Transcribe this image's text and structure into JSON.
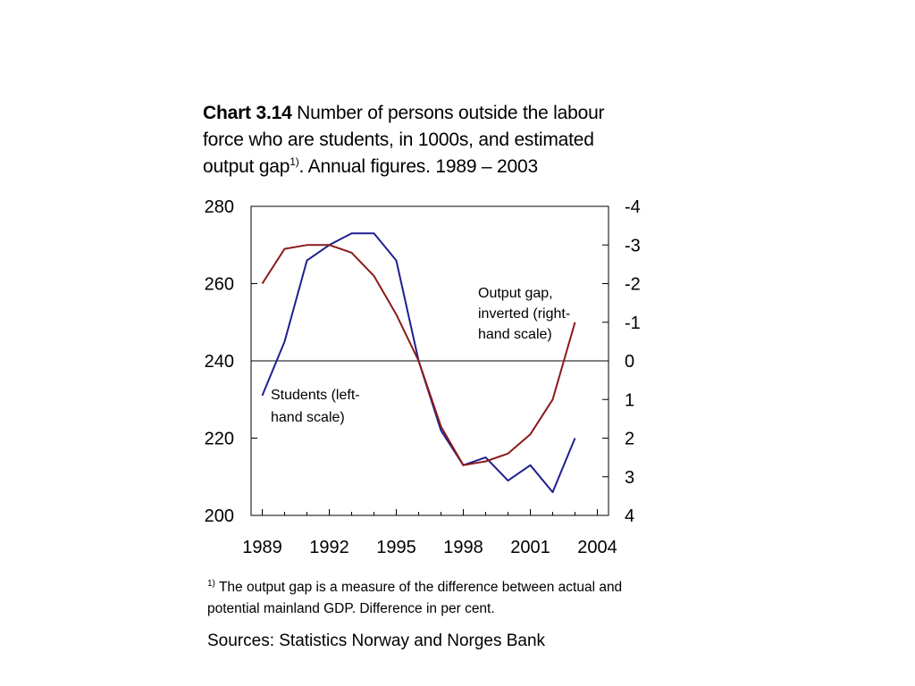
{
  "title": {
    "bold": "Chart 3.14",
    "line1": " Number of persons outside the labour",
    "line2": "force who are students, in 1000s, and estimated",
    "line3_pre": "output gap",
    "line3_sup": "1)",
    "line3_post": ". Annual figures. 1989 – 2003"
  },
  "footnote": {
    "marker": "1)",
    "text": "The output gap is a measure of the difference between actual and potential mainland GDP. Difference in per cent."
  },
  "sources": "Sources: Statistics Norway and Norges Bank",
  "chart_data": {
    "type": "line",
    "x_ticks": [
      "1989",
      "1992",
      "1995",
      "1998",
      "2001",
      "2004"
    ],
    "xlim": [
      1988.5,
      2004.5
    ],
    "y_left": {
      "ticks": [
        "280",
        "260",
        "240",
        "220",
        "200"
      ],
      "range": [
        200,
        280
      ]
    },
    "y_right": {
      "ticks": [
        "-4",
        "-3",
        "-2",
        "-1",
        "0",
        "1",
        "2",
        "3",
        "4"
      ],
      "range": [
        -4,
        4
      ],
      "inverted": true
    },
    "zero_line_right": 0,
    "series": [
      {
        "name": "Students (left-hand scale)",
        "label_lines": [
          "Students (left-",
          "hand scale)"
        ],
        "axis": "left",
        "color": "#1f1f8f",
        "x": [
          1989,
          1990,
          1991,
          1992,
          1993,
          1994,
          1995,
          1996,
          1997,
          1998,
          1999,
          2000,
          2001,
          2002,
          2003
        ],
        "values": [
          231,
          245,
          266,
          270,
          273,
          273,
          266,
          240,
          222,
          213,
          215,
          209,
          213,
          206,
          220
        ]
      },
      {
        "name": "Output gap, inverted (right-hand scale)",
        "label_lines": [
          "Output gap,",
          "inverted (right-",
          "hand scale)"
        ],
        "axis": "right",
        "color": "#8b1a1a",
        "x": [
          1989,
          1990,
          1991,
          1992,
          1993,
          1994,
          1995,
          1996,
          1997,
          1998,
          1999,
          2000,
          2001,
          2002,
          2003
        ],
        "values": [
          -2.0,
          -2.9,
          -3.0,
          -3.0,
          -2.8,
          -2.2,
          -1.2,
          0.0,
          1.7,
          2.7,
          2.6,
          2.4,
          1.9,
          1.0,
          -1.0
        ]
      }
    ]
  }
}
